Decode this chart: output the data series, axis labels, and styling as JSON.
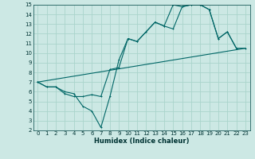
{
  "xlabel": "Humidex (Indice chaleur)",
  "background_color": "#cce8e4",
  "grid_color": "#aad4cc",
  "line_color": "#006666",
  "xlim": [
    -0.5,
    23.5
  ],
  "ylim": [
    2,
    15
  ],
  "xticks": [
    0,
    1,
    2,
    3,
    4,
    5,
    6,
    7,
    8,
    9,
    10,
    11,
    12,
    13,
    14,
    15,
    16,
    17,
    18,
    19,
    20,
    21,
    22,
    23
  ],
  "yticks": [
    2,
    3,
    4,
    5,
    6,
    7,
    8,
    9,
    10,
    11,
    12,
    13,
    14,
    15
  ],
  "line1_x": [
    0,
    1,
    2,
    3,
    4,
    5,
    6,
    7,
    8,
    9,
    10,
    11,
    12,
    13,
    14,
    15,
    16,
    17,
    18,
    19,
    20,
    21,
    22,
    23
  ],
  "line1_y": [
    7.0,
    6.5,
    6.5,
    5.8,
    5.5,
    5.5,
    5.7,
    5.5,
    8.3,
    8.5,
    11.5,
    11.2,
    12.2,
    13.2,
    12.8,
    12.5,
    14.8,
    15.0,
    15.0,
    14.5,
    11.5,
    12.2,
    10.5,
    10.5
  ],
  "line2_x": [
    0,
    1,
    2,
    3,
    4,
    5,
    6,
    7,
    8,
    9,
    10,
    11,
    12,
    13,
    14,
    15,
    16,
    17,
    18,
    19,
    20,
    21,
    22
  ],
  "line2_y": [
    7.0,
    6.5,
    6.5,
    6.0,
    5.8,
    4.5,
    4.0,
    2.3,
    5.5,
    9.3,
    11.5,
    11.2,
    12.2,
    13.2,
    12.8,
    15.0,
    14.8,
    15.0,
    15.0,
    14.5,
    11.5,
    12.2,
    10.5
  ],
  "line3_x": [
    0,
    23
  ],
  "line3_y": [
    7.0,
    10.5
  ]
}
